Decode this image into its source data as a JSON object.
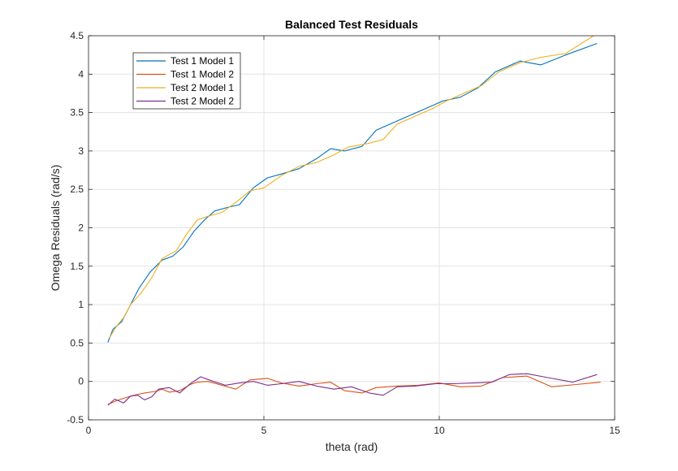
{
  "chart_data": {
    "type": "line",
    "title": "Balanced Test Residuals",
    "xlabel": "theta (rad)",
    "ylabel": "Omega Residuals (rad/s)",
    "xlim": [
      0,
      15
    ],
    "ylim": [
      -0.5,
      4.5
    ],
    "xticks": [
      0,
      5,
      10,
      15
    ],
    "xtick_labels": [
      "0",
      "5",
      "10",
      "15"
    ],
    "yticks": [
      -0.5,
      0,
      0.5,
      1,
      1.5,
      2,
      2.5,
      3,
      3.5,
      4,
      4.5
    ],
    "ytick_labels": [
      "-0.5",
      "0",
      "0.5",
      "1",
      "1.5",
      "2",
      "2.5",
      "3",
      "3.5",
      "4",
      "4.5"
    ],
    "grid": true,
    "legend_position": "top-left",
    "series": [
      {
        "name": "Test 1 Model 1",
        "color": "#0072BD",
        "x": [
          0.55,
          0.7,
          0.95,
          1.2,
          1.45,
          1.75,
          2.1,
          2.4,
          2.7,
          3.0,
          3.3,
          3.6,
          4.0,
          4.3,
          4.7,
          5.1,
          5.5,
          6.0,
          6.5,
          6.9,
          7.3,
          7.8,
          8.2,
          8.6,
          9.1,
          9.6,
          10.1,
          10.6,
          11.1,
          11.6,
          12.3,
          12.9,
          13.6,
          14.5
        ],
        "y": [
          0.51,
          0.68,
          0.78,
          1.0,
          1.22,
          1.42,
          1.58,
          1.63,
          1.75,
          1.95,
          2.1,
          2.22,
          2.27,
          2.3,
          2.52,
          2.65,
          2.7,
          2.77,
          2.9,
          3.03,
          3.0,
          3.06,
          3.27,
          3.35,
          3.45,
          3.55,
          3.65,
          3.7,
          3.82,
          4.03,
          4.17,
          4.12,
          4.25,
          4.4
        ]
      },
      {
        "name": "Test 1 Model 2",
        "color": "#D95319",
        "x": [
          0.55,
          0.8,
          1.0,
          1.3,
          1.6,
          1.9,
          2.1,
          2.3,
          2.6,
          2.9,
          3.1,
          3.4,
          3.8,
          4.2,
          4.6,
          5.1,
          5.5,
          6.0,
          6.5,
          6.9,
          7.3,
          7.8,
          8.2,
          8.8,
          9.4,
          10.0,
          10.6,
          11.2,
          11.8,
          12.5,
          13.2,
          13.9,
          14.6
        ],
        "y": [
          -0.3,
          -0.25,
          -0.22,
          -0.18,
          -0.15,
          -0.13,
          -0.1,
          -0.14,
          -0.12,
          -0.04,
          -0.01,
          0.0,
          -0.05,
          -0.1,
          0.02,
          0.04,
          -0.02,
          -0.06,
          -0.03,
          -0.01,
          -0.12,
          -0.15,
          -0.08,
          -0.06,
          -0.05,
          -0.02,
          -0.07,
          -0.06,
          0.05,
          0.07,
          -0.07,
          -0.04,
          -0.01
        ]
      },
      {
        "name": "Test 2 Model 1",
        "color": "#EDB120",
        "x": [
          0.6,
          0.8,
          1.0,
          1.2,
          1.5,
          1.8,
          2.1,
          2.5,
          2.8,
          3.1,
          3.4,
          3.8,
          4.2,
          4.6,
          5.0,
          5.5,
          6.0,
          6.5,
          7.0,
          7.4,
          8.0,
          8.4,
          8.8,
          9.3,
          9.8,
          10.2,
          10.7,
          11.2,
          11.7,
          12.3,
          12.9,
          13.6,
          14.4
        ],
        "y": [
          0.57,
          0.72,
          0.83,
          1.0,
          1.15,
          1.35,
          1.6,
          1.7,
          1.92,
          2.1,
          2.15,
          2.2,
          2.33,
          2.48,
          2.52,
          2.68,
          2.8,
          2.85,
          2.95,
          3.05,
          3.1,
          3.15,
          3.35,
          3.45,
          3.55,
          3.65,
          3.75,
          3.85,
          4.03,
          4.15,
          4.22,
          4.27,
          4.5
        ]
      },
      {
        "name": "Test 2 Model 2",
        "color": "#7E2F8E",
        "x": [
          0.55,
          0.75,
          1.0,
          1.2,
          1.4,
          1.6,
          1.8,
          2.0,
          2.3,
          2.6,
          2.9,
          3.2,
          3.5,
          3.9,
          4.3,
          4.7,
          5.1,
          5.5,
          6.0,
          6.5,
          7.0,
          7.5,
          8.0,
          8.4,
          8.8,
          9.3,
          9.9,
          10.4,
          11.0,
          11.5,
          12.0,
          12.5,
          13.1,
          13.8,
          14.5
        ],
        "y": [
          -0.31,
          -0.23,
          -0.28,
          -0.19,
          -0.18,
          -0.24,
          -0.2,
          -0.1,
          -0.08,
          -0.15,
          -0.03,
          0.06,
          0.01,
          -0.05,
          -0.02,
          0.0,
          -0.05,
          -0.03,
          0.0,
          -0.06,
          -0.1,
          -0.07,
          -0.15,
          -0.18,
          -0.07,
          -0.06,
          -0.03,
          -0.03,
          -0.02,
          -0.01,
          0.09,
          0.1,
          0.05,
          -0.01,
          0.09
        ]
      }
    ]
  }
}
